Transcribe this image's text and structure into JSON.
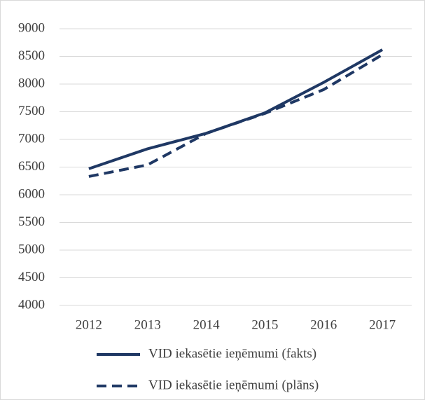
{
  "chart_data": {
    "type": "line",
    "categories": [
      "2012",
      "2013",
      "2014",
      "2015",
      "2016",
      "2017"
    ],
    "series": [
      {
        "name": "VID iekasētie ieņēmumi (fakts)",
        "color": "#1f3864",
        "dash": "solid",
        "values": [
          6470,
          6830,
          7110,
          7480,
          8030,
          8620
        ]
      },
      {
        "name": "VID iekasētie ieņēmumi (plāns)",
        "color": "#1f3864",
        "dash": "dashed",
        "values": [
          6330,
          6540,
          7110,
          7470,
          7900,
          8530
        ]
      }
    ],
    "ylim": [
      4000,
      9000
    ],
    "yticks": [
      4000,
      4500,
      5000,
      5500,
      6000,
      6500,
      7000,
      7500,
      8000,
      8500,
      9000
    ],
    "grid": true,
    "legend": "bottom"
  }
}
